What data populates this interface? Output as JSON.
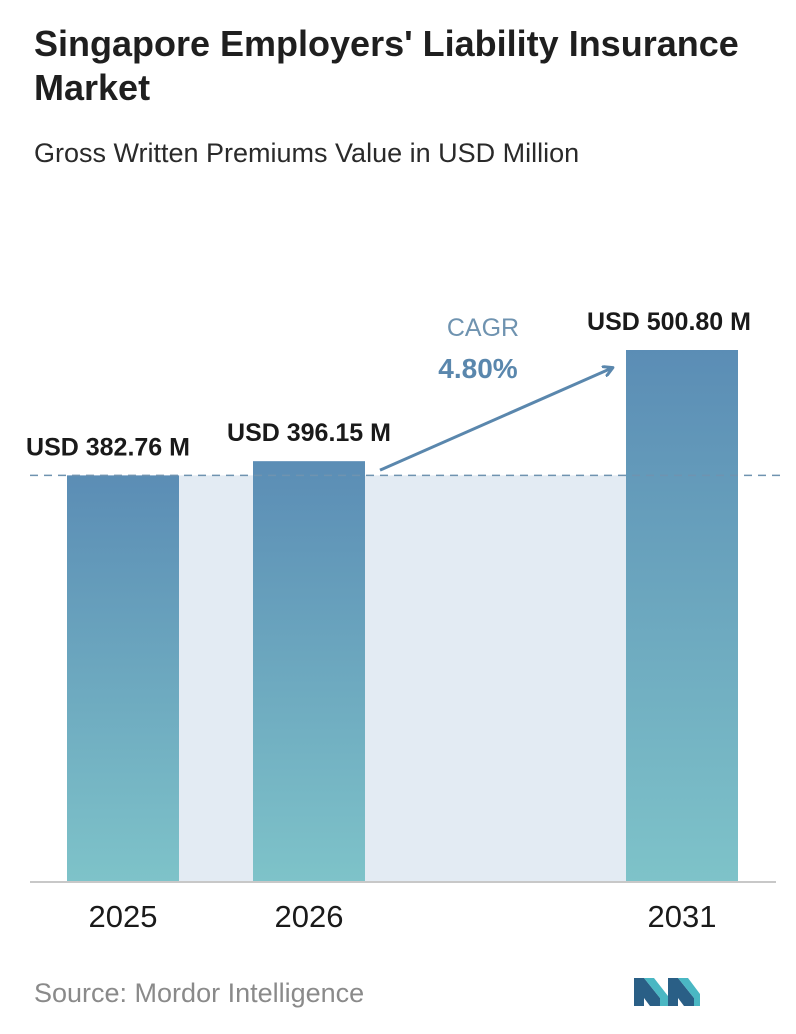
{
  "header": {
    "title": "Singapore Employers' Liability Insurance Market",
    "subtitle": "Gross Written Premiums Value in USD Million"
  },
  "chart_data": {
    "type": "bar",
    "categories": [
      "2025",
      "2026",
      "2031"
    ],
    "values": [
      382.76,
      396.15,
      500.8
    ],
    "value_labels": [
      "USD 382.76 M",
      "USD 396.15 M",
      "USD 500.80 M"
    ],
    "title": "Singapore Employers' Liability Insurance Market",
    "subtitle": "Gross Written Premiums Value in USD Million",
    "xlabel": "",
    "ylabel": "",
    "ylim": [
      0,
      500.8
    ],
    "grid": false,
    "annotations": [
      {
        "type": "cagr",
        "label": "CAGR",
        "value": "4.80%"
      }
    ],
    "colors": {
      "bar_top": "#5b8db5",
      "bar_bottom": "#7ec3c9",
      "band": "#e3ebf3",
      "reference_line": "#6f93b0",
      "axis": "#c8c8c8",
      "cagr_label": "#6f93b0",
      "cagr_value": "#5a87ad"
    }
  },
  "footer": {
    "source": "Source: Mordor Intelligence",
    "logo_icon": "mordor-intelligence-logo"
  }
}
